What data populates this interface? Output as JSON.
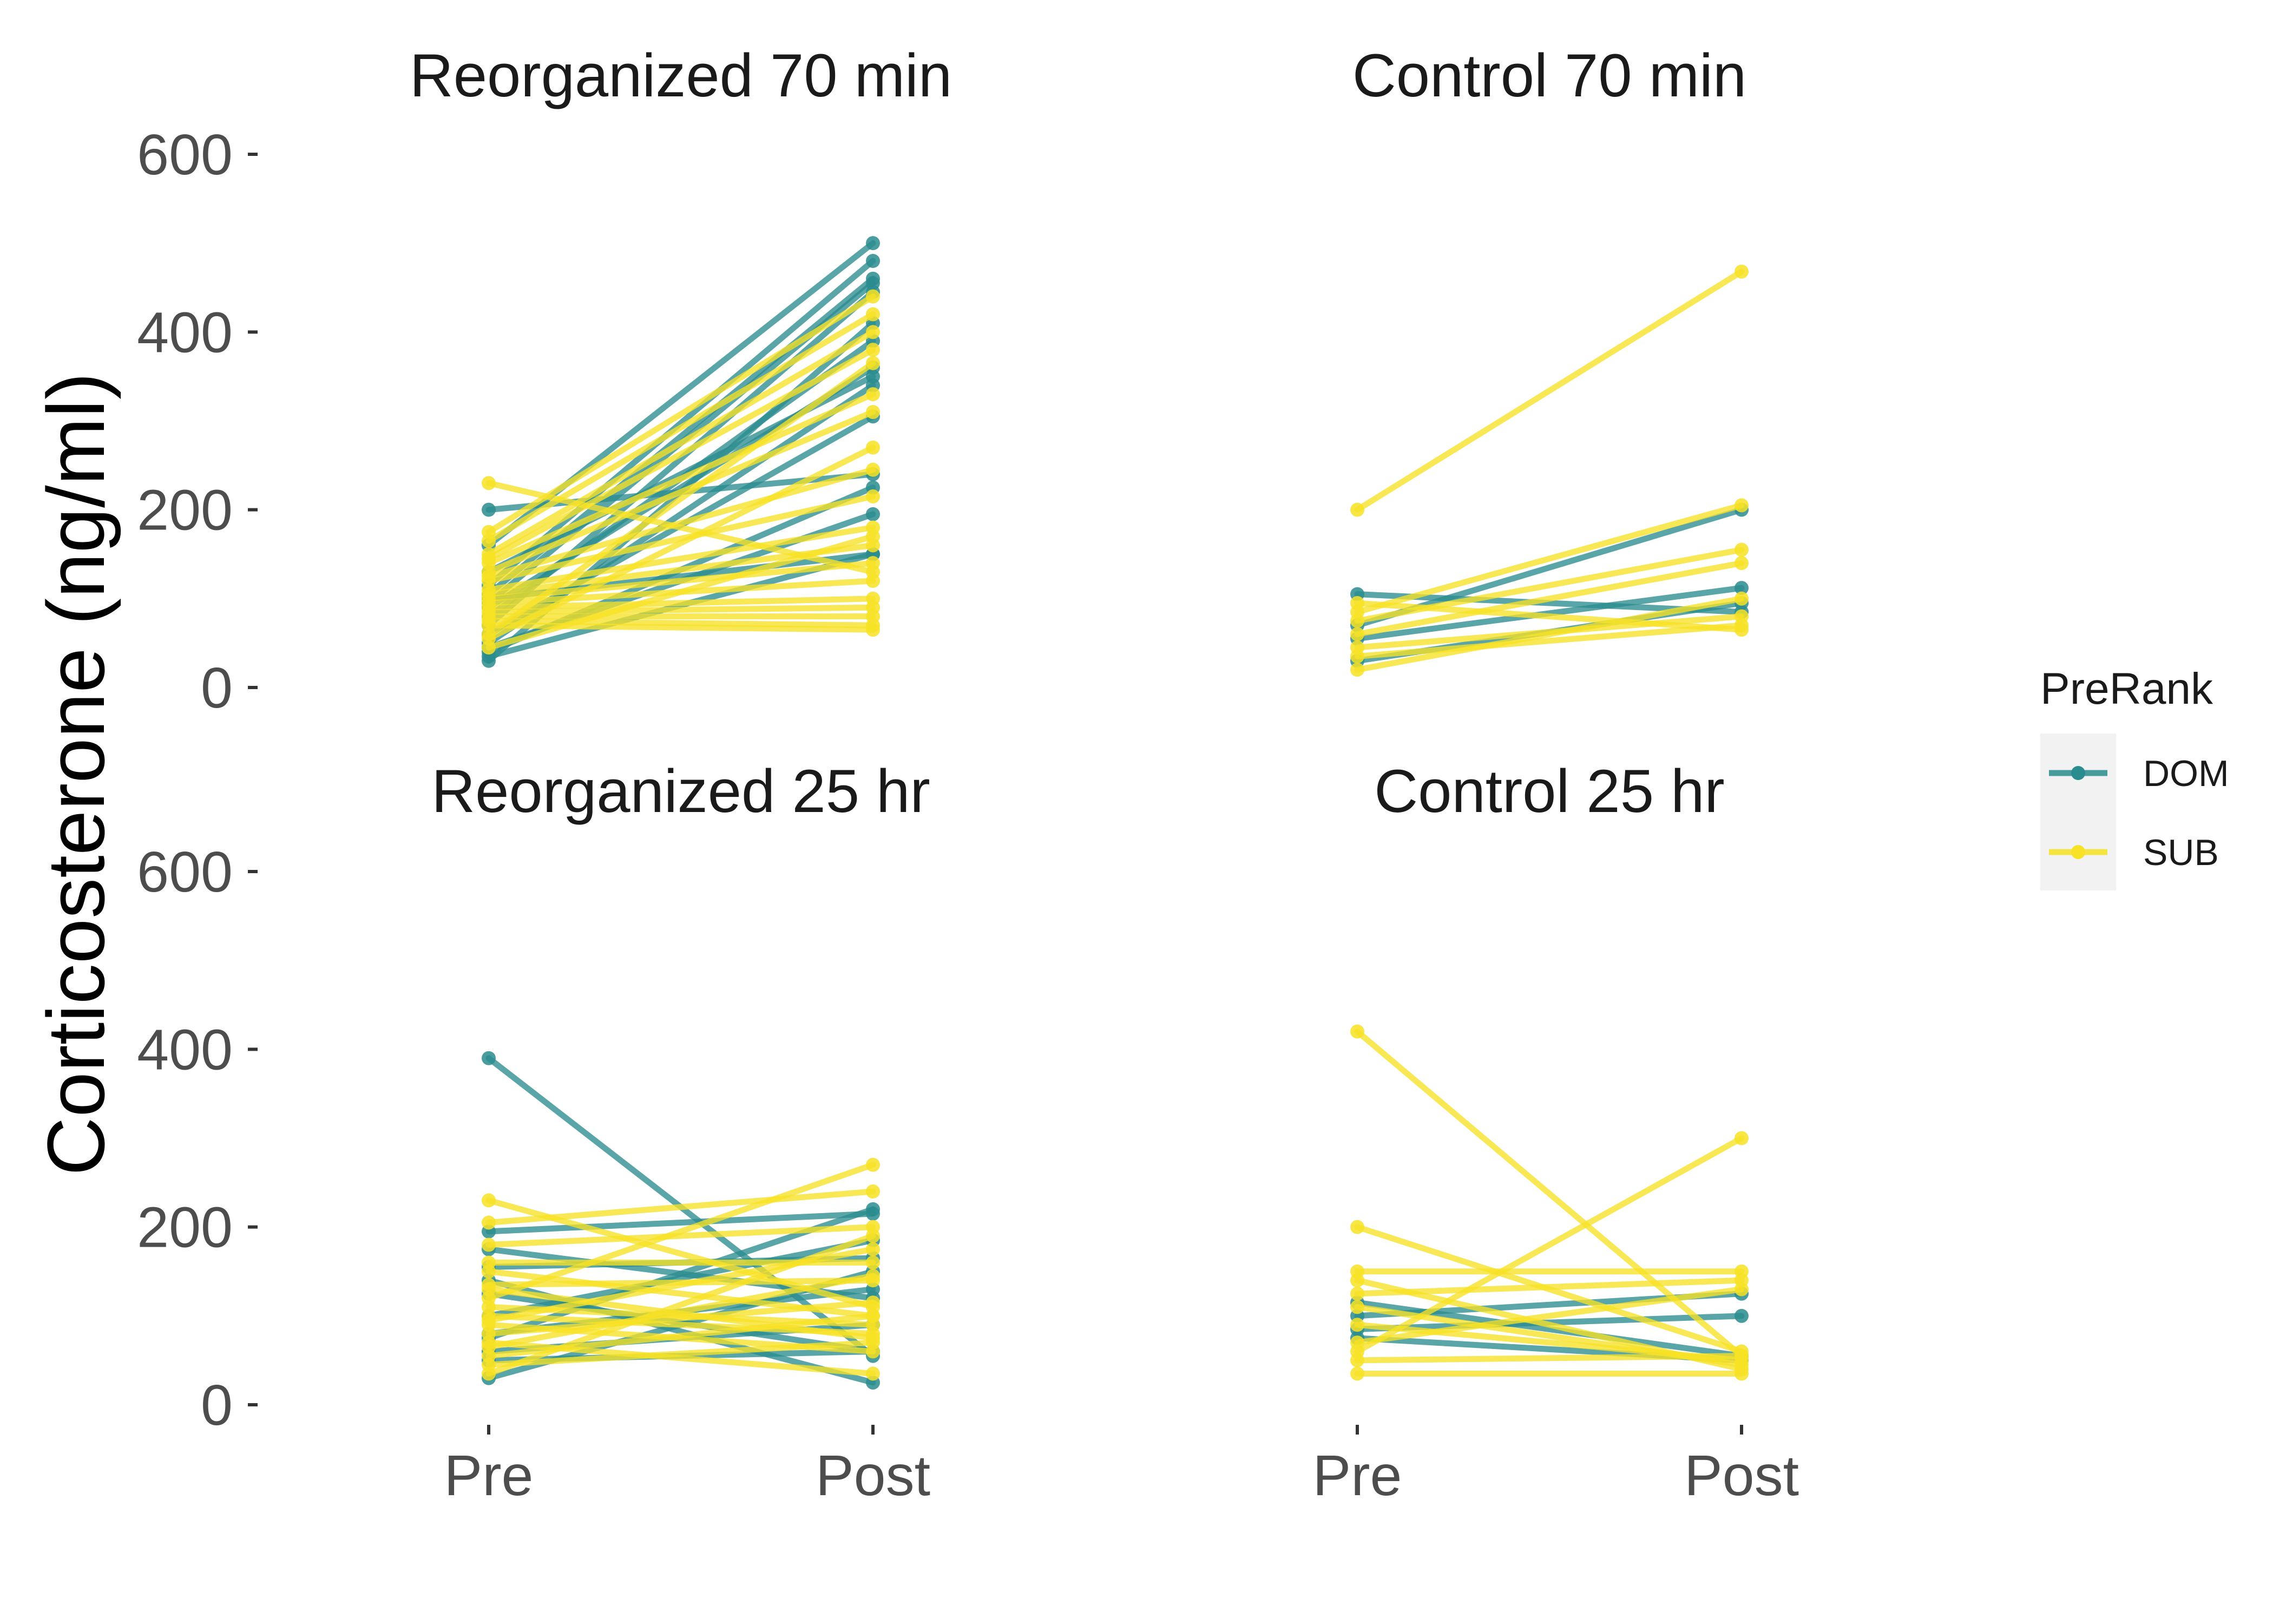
{
  "chart_data": {
    "type": "line",
    "ylabel": "Corticosterone (ng/ml)",
    "xlabel": "",
    "ylim": [
      0,
      600
    ],
    "y_ticks": [
      0,
      200,
      400,
      600
    ],
    "x_categories": [
      "Pre",
      "Post"
    ],
    "grid": false,
    "legend": {
      "title": "PreRank",
      "position": "right",
      "items": [
        {
          "name": "DOM",
          "color": "#2a8c8e"
        },
        {
          "name": "SUB",
          "color": "#f7e225"
        }
      ]
    },
    "panels": [
      {
        "title": "Reorganized 70 min",
        "lines": [
          {
            "group": "DOM",
            "pre": 200,
            "post": 240
          },
          {
            "group": "DOM",
            "pre": 160,
            "post": 500
          },
          {
            "group": "DOM",
            "pre": 130,
            "post": 350
          },
          {
            "group": "DOM",
            "pre": 115,
            "post": 480
          },
          {
            "group": "DOM",
            "pre": 105,
            "post": 460
          },
          {
            "group": "DOM",
            "pre": 100,
            "post": 150
          },
          {
            "group": "DOM",
            "pre": 95,
            "post": 455
          },
          {
            "group": "DOM",
            "pre": 90,
            "post": 360
          },
          {
            "group": "DOM",
            "pre": 80,
            "post": 390
          },
          {
            "group": "DOM",
            "pre": 70,
            "post": 445
          },
          {
            "group": "DOM",
            "pre": 60,
            "post": 305
          },
          {
            "group": "DOM",
            "pre": 50,
            "post": 340
          },
          {
            "group": "DOM",
            "pre": 45,
            "post": 195
          },
          {
            "group": "DOM",
            "pre": 40,
            "post": 225
          },
          {
            "group": "DOM",
            "pre": 35,
            "post": 150
          },
          {
            "group": "DOM",
            "pre": 30,
            "post": 410
          },
          {
            "group": "SUB",
            "pre": 230,
            "post": 130
          },
          {
            "group": "SUB",
            "pre": 175,
            "post": 440
          },
          {
            "group": "SUB",
            "pre": 165,
            "post": 420
          },
          {
            "group": "SUB",
            "pre": 150,
            "post": 400
          },
          {
            "group": "SUB",
            "pre": 145,
            "post": 380
          },
          {
            "group": "SUB",
            "pre": 140,
            "post": 330
          },
          {
            "group": "SUB",
            "pre": 130,
            "post": 310
          },
          {
            "group": "SUB",
            "pre": 125,
            "post": 245
          },
          {
            "group": "SUB",
            "pre": 120,
            "post": 215
          },
          {
            "group": "SUB",
            "pre": 110,
            "post": 180
          },
          {
            "group": "SUB",
            "pre": 105,
            "post": 160
          },
          {
            "group": "SUB",
            "pre": 100,
            "post": 140
          },
          {
            "group": "SUB",
            "pre": 95,
            "post": 120
          },
          {
            "group": "SUB",
            "pre": 90,
            "post": 100
          },
          {
            "group": "SUB",
            "pre": 85,
            "post": 90
          },
          {
            "group": "SUB",
            "pre": 80,
            "post": 80
          },
          {
            "group": "SUB",
            "pre": 75,
            "post": 70
          },
          {
            "group": "SUB",
            "pre": 70,
            "post": 65
          },
          {
            "group": "SUB",
            "pre": 60,
            "post": 365
          },
          {
            "group": "SUB",
            "pre": 55,
            "post": 270
          },
          {
            "group": "SUB",
            "pre": 45,
            "post": 170
          }
        ]
      },
      {
        "title": "Control 70 min",
        "lines": [
          {
            "group": "DOM",
            "pre": 105,
            "post": 85
          },
          {
            "group": "DOM",
            "pre": 70,
            "post": 200
          },
          {
            "group": "DOM",
            "pre": 55,
            "post": 112
          },
          {
            "group": "DOM",
            "pre": 30,
            "post": 95
          },
          {
            "group": "SUB",
            "pre": 200,
            "post": 468
          },
          {
            "group": "SUB",
            "pre": 95,
            "post": 65
          },
          {
            "group": "SUB",
            "pre": 85,
            "post": 205
          },
          {
            "group": "SUB",
            "pre": 75,
            "post": 155
          },
          {
            "group": "SUB",
            "pre": 60,
            "post": 140
          },
          {
            "group": "SUB",
            "pre": 45,
            "post": 80
          },
          {
            "group": "SUB",
            "pre": 35,
            "post": 70
          },
          {
            "group": "SUB",
            "pre": 20,
            "post": 100
          }
        ]
      },
      {
        "title": "Reorganized 25 hr",
        "lines": [
          {
            "group": "DOM",
            "pre": 390,
            "post": 55
          },
          {
            "group": "DOM",
            "pre": 195,
            "post": 215
          },
          {
            "group": "DOM",
            "pre": 175,
            "post": 120
          },
          {
            "group": "DOM",
            "pre": 155,
            "post": 165
          },
          {
            "group": "DOM",
            "pre": 140,
            "post": 25
          },
          {
            "group": "DOM",
            "pre": 125,
            "post": 60
          },
          {
            "group": "DOM",
            "pre": 100,
            "post": 185
          },
          {
            "group": "DOM",
            "pre": 80,
            "post": 130
          },
          {
            "group": "DOM",
            "pre": 75,
            "post": 220
          },
          {
            "group": "DOM",
            "pre": 60,
            "post": 90
          },
          {
            "group": "DOM",
            "pre": 50,
            "post": 60
          },
          {
            "group": "DOM",
            "pre": 30,
            "post": 150
          },
          {
            "group": "SUB",
            "pre": 230,
            "post": 110
          },
          {
            "group": "SUB",
            "pre": 205,
            "post": 240
          },
          {
            "group": "SUB",
            "pre": 180,
            "post": 200
          },
          {
            "group": "SUB",
            "pre": 160,
            "post": 160
          },
          {
            "group": "SUB",
            "pre": 150,
            "post": 100
          },
          {
            "group": "SUB",
            "pre": 135,
            "post": 140
          },
          {
            "group": "SUB",
            "pre": 130,
            "post": 75
          },
          {
            "group": "SUB",
            "pre": 120,
            "post": 270
          },
          {
            "group": "SUB",
            "pre": 110,
            "post": 90
          },
          {
            "group": "SUB",
            "pre": 100,
            "post": 80
          },
          {
            "group": "SUB",
            "pre": 95,
            "post": 175
          },
          {
            "group": "SUB",
            "pre": 90,
            "post": 60
          },
          {
            "group": "SUB",
            "pre": 80,
            "post": 115
          },
          {
            "group": "SUB",
            "pre": 70,
            "post": 35
          },
          {
            "group": "SUB",
            "pre": 65,
            "post": 145
          },
          {
            "group": "SUB",
            "pre": 55,
            "post": 100
          },
          {
            "group": "SUB",
            "pre": 45,
            "post": 70
          },
          {
            "group": "SUB",
            "pre": 35,
            "post": 190
          }
        ]
      },
      {
        "title": "Control 25 hr",
        "lines": [
          {
            "group": "DOM",
            "pre": 115,
            "post": 55
          },
          {
            "group": "DOM",
            "pre": 100,
            "post": 125
          },
          {
            "group": "DOM",
            "pre": 85,
            "post": 100
          },
          {
            "group": "DOM",
            "pre": 75,
            "post": 50
          },
          {
            "group": "SUB",
            "pre": 420,
            "post": 55
          },
          {
            "group": "SUB",
            "pre": 200,
            "post": 60
          },
          {
            "group": "SUB",
            "pre": 150,
            "post": 150
          },
          {
            "group": "SUB",
            "pre": 140,
            "post": 40
          },
          {
            "group": "SUB",
            "pre": 125,
            "post": 140
          },
          {
            "group": "SUB",
            "pre": 110,
            "post": 45
          },
          {
            "group": "SUB",
            "pre": 90,
            "post": 50
          },
          {
            "group": "SUB",
            "pre": 70,
            "post": 130
          },
          {
            "group": "SUB",
            "pre": 60,
            "post": 300
          },
          {
            "group": "SUB",
            "pre": 50,
            "post": 55
          },
          {
            "group": "SUB",
            "pre": 35,
            "post": 35
          }
        ]
      }
    ]
  }
}
